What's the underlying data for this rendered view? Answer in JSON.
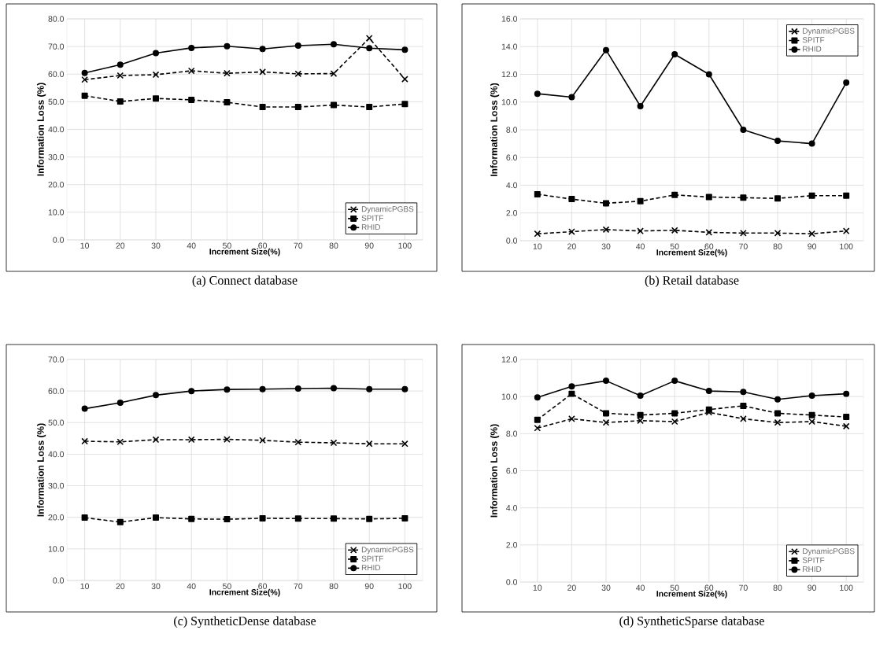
{
  "chart_data": [
    {
      "type": "line",
      "title": "(a)  Connect database",
      "xlabel": "Increment Size(%)",
      "ylabel": "Information Loss (%)",
      "categories": [
        "10",
        "20",
        "30",
        "40",
        "50",
        "60",
        "70",
        "80",
        "90",
        "100"
      ],
      "ylim": [
        0,
        80
      ],
      "yticks": [
        {
          "value": 0,
          "label": "0.0"
        },
        {
          "value": 10,
          "label": "10.0"
        },
        {
          "value": 20,
          "label": "20.0"
        },
        {
          "value": 30,
          "label": "30.0"
        },
        {
          "value": 40,
          "label": "40.0"
        },
        {
          "value": 50,
          "label": "50.0"
        },
        {
          "value": 60,
          "label": "60.0"
        },
        {
          "value": 70,
          "label": "70.0"
        },
        {
          "value": 80,
          "label": "80.0"
        }
      ],
      "grid": true,
      "legend": "bottom right",
      "series": [
        {
          "name": "DynamicPGBS",
          "color": "#000000",
          "marker": "cross",
          "line_style": "dashed",
          "values": [
            58.0,
            59.5,
            59.8,
            61.2,
            60.3,
            60.8,
            60.1,
            60.2,
            73.0,
            58.2
          ]
        },
        {
          "name": "SPITF",
          "color": "#000000",
          "marker": "square",
          "line_style": "dashed",
          "values": [
            52.2,
            50.1,
            51.2,
            50.7,
            49.8,
            48.1,
            48.1,
            48.8,
            48.1,
            49.2
          ]
        },
        {
          "name": "RHID",
          "color": "#000000",
          "marker": "circle",
          "line_style": "solid",
          "values": [
            60.4,
            63.4,
            67.6,
            69.5,
            70.1,
            69.1,
            70.3,
            70.8,
            69.4,
            68.8
          ]
        }
      ]
    },
    {
      "type": "line",
      "title": "(b)  Retail database",
      "xlabel": "Increment Size(%)",
      "ylabel": "Information Loss (%)",
      "categories": [
        "10",
        "20",
        "30",
        "40",
        "50",
        "60",
        "70",
        "80",
        "90",
        "100"
      ],
      "ylim": [
        0,
        16
      ],
      "yticks": [
        {
          "value": 0,
          "label": "0.0"
        },
        {
          "value": 2,
          "label": "2.0"
        },
        {
          "value": 4,
          "label": "4.0"
        },
        {
          "value": 6,
          "label": "6.0"
        },
        {
          "value": 8,
          "label": "8.0"
        },
        {
          "value": 10,
          "label": "10.0"
        },
        {
          "value": 12,
          "label": "12.0"
        },
        {
          "value": 14,
          "label": "14.0"
        },
        {
          "value": 16,
          "label": "16.0"
        }
      ],
      "grid": true,
      "legend": "top right",
      "series": [
        {
          "name": "DynamicPGBS",
          "color": "#000000",
          "marker": "cross",
          "line_style": "dashed",
          "values": [
            0.5,
            0.65,
            0.8,
            0.7,
            0.75,
            0.6,
            0.55,
            0.55,
            0.5,
            0.7
          ]
        },
        {
          "name": "SPITF",
          "color": "#000000",
          "marker": "square",
          "line_style": "dashed",
          "values": [
            3.35,
            3.0,
            2.7,
            2.85,
            3.3,
            3.15,
            3.1,
            3.05,
            3.25,
            3.25
          ]
        },
        {
          "name": "RHID",
          "color": "#000000",
          "marker": "circle",
          "line_style": "solid",
          "values": [
            10.6,
            10.35,
            13.75,
            9.7,
            13.45,
            12.0,
            8.0,
            7.2,
            7.0,
            11.4
          ]
        }
      ]
    },
    {
      "type": "line",
      "title": "(c)  SyntheticDense database",
      "xlabel": "Increment Size(%)",
      "ylabel": "Information Loss (%)",
      "categories": [
        "10",
        "20",
        "30",
        "40",
        "50",
        "60",
        "70",
        "80",
        "90",
        "100"
      ],
      "ylim": [
        0,
        70
      ],
      "yticks": [
        {
          "value": 0,
          "label": "0.0"
        },
        {
          "value": 10,
          "label": "10.0"
        },
        {
          "value": 20,
          "label": "20.0"
        },
        {
          "value": 30,
          "label": "30.0"
        },
        {
          "value": 40,
          "label": "40.0"
        },
        {
          "value": 50,
          "label": "50.0"
        },
        {
          "value": 60,
          "label": "60.0"
        },
        {
          "value": 70,
          "label": "70.0"
        }
      ],
      "grid": true,
      "legend": "bottom right",
      "series": [
        {
          "name": "DynamicPGBS",
          "color": "#000000",
          "marker": "cross",
          "line_style": "dashed",
          "values": [
            44.1,
            43.9,
            44.6,
            44.6,
            44.7,
            44.4,
            43.8,
            43.6,
            43.3,
            43.3
          ]
        },
        {
          "name": "SPITF",
          "color": "#000000",
          "marker": "square",
          "line_style": "dashed",
          "values": [
            19.9,
            18.5,
            19.9,
            19.5,
            19.4,
            19.7,
            19.6,
            19.6,
            19.5,
            19.7
          ]
        },
        {
          "name": "RHID",
          "color": "#000000",
          "marker": "circle",
          "line_style": "solid",
          "values": [
            54.4,
            56.3,
            58.7,
            60.0,
            60.5,
            60.6,
            60.8,
            60.9,
            60.6,
            60.6
          ]
        }
      ]
    },
    {
      "type": "line",
      "title": "(d)  SyntheticSparse database",
      "xlabel": "Increment Size(%)",
      "ylabel": "Information Loss (%)",
      "categories": [
        "10",
        "20",
        "30",
        "40",
        "50",
        "60",
        "70",
        "80",
        "90",
        "100"
      ],
      "ylim": [
        0,
        12
      ],
      "yticks": [
        {
          "value": 0,
          "label": "0.0"
        },
        {
          "value": 2,
          "label": "2.0"
        },
        {
          "value": 4,
          "label": "4.0"
        },
        {
          "value": 6,
          "label": "6.0"
        },
        {
          "value": 8,
          "label": "8.0"
        },
        {
          "value": 10,
          "label": "10.0"
        },
        {
          "value": 12,
          "label": "12.0"
        }
      ],
      "grid": true,
      "legend": "bottom right",
      "series": [
        {
          "name": "DynamicPGBS",
          "color": "#000000",
          "marker": "cross",
          "line_style": "dashed",
          "values": [
            8.3,
            8.8,
            8.6,
            8.7,
            8.65,
            9.15,
            8.8,
            8.6,
            8.65,
            8.4
          ]
        },
        {
          "name": "SPITF",
          "color": "#000000",
          "marker": "square",
          "line_style": "dashed",
          "values": [
            8.75,
            10.15,
            9.1,
            9.0,
            9.1,
            9.3,
            9.5,
            9.1,
            9.0,
            8.9
          ]
        },
        {
          "name": "RHID",
          "color": "#000000",
          "marker": "circle",
          "line_style": "solid",
          "values": [
            9.95,
            10.55,
            10.85,
            10.05,
            10.85,
            10.3,
            10.25,
            9.85,
            10.05,
            10.15
          ]
        }
      ]
    }
  ]
}
